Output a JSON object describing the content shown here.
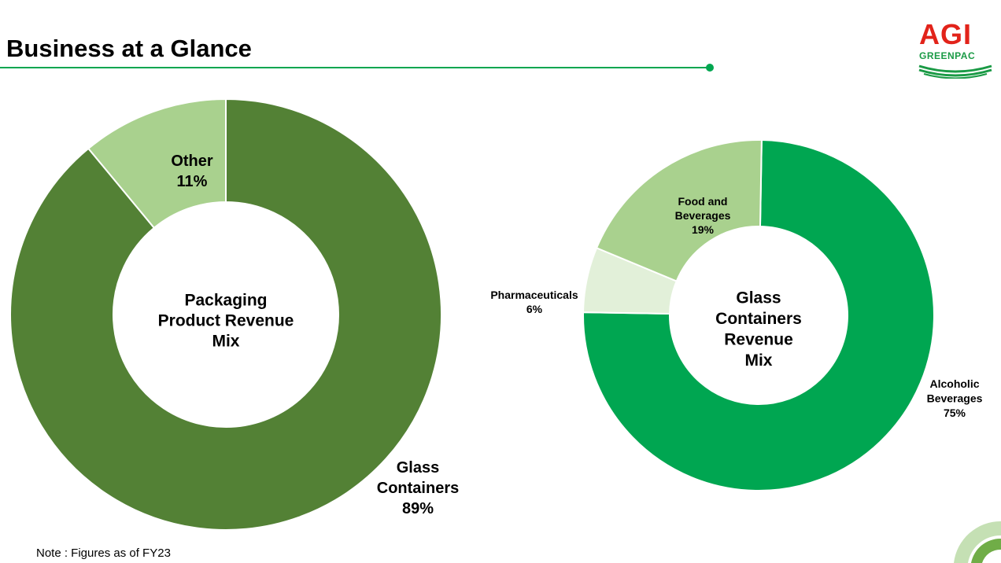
{
  "page": {
    "title": "Business at a Glance",
    "note": "Note : Figures as of FY23",
    "logo": {
      "main": "AGI",
      "sub": "GREENPAC"
    }
  },
  "colors": {
    "accent": "#00a650",
    "logo_red": "#e2231a",
    "dark_green": "#538135",
    "light_green": "#a9d18e",
    "bright_green": "#00a651",
    "pale_green": "#e2f0d9"
  },
  "chart_data": [
    {
      "type": "pie",
      "center_label": [
        "Packaging",
        "Product Revenue",
        "Mix"
      ],
      "slices": [
        {
          "label": [
            "Glass",
            "Containers"
          ],
          "value": 89,
          "value_label": "89%",
          "color": "#538135"
        },
        {
          "label": [
            "Other"
          ],
          "value": 11,
          "value_label": "11%",
          "color": "#a9d18e"
        }
      ]
    },
    {
      "type": "pie",
      "center_label": [
        "Glass",
        "Containers",
        "Revenue",
        "Mix"
      ],
      "slices": [
        {
          "label": [
            "Alcoholic",
            "Beverages"
          ],
          "value": 75,
          "value_label": "75%",
          "color": "#00a651"
        },
        {
          "label": [
            "Pharmaceuticals"
          ],
          "value": 6,
          "value_label": "6%",
          "color": "#e2f0d9"
        },
        {
          "label": [
            "Food and",
            "Beverages"
          ],
          "value": 19,
          "value_label": "19%",
          "color": "#a9d18e"
        }
      ]
    }
  ]
}
